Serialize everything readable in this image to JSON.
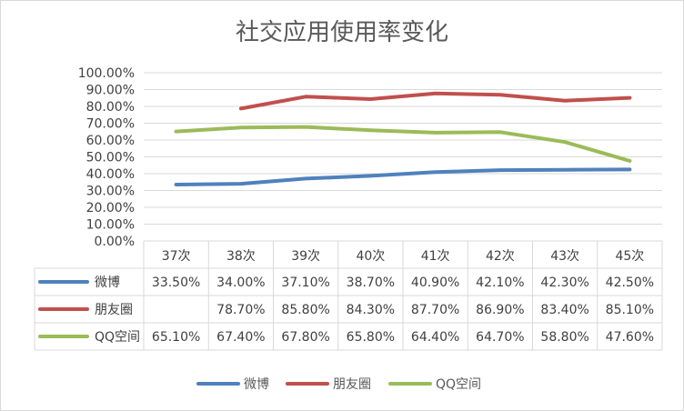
{
  "chart_data": {
    "type": "line",
    "title": "社交应用使用率变化",
    "categories": [
      "37次",
      "38次",
      "39次",
      "40次",
      "41次",
      "42次",
      "43次",
      "45次"
    ],
    "ylim": [
      0,
      100
    ],
    "yticks": [
      "0.00%",
      "10.00%",
      "20.00%",
      "30.00%",
      "40.00%",
      "50.00%",
      "60.00%",
      "70.00%",
      "80.00%",
      "90.00%",
      "100.00%"
    ],
    "grid": true,
    "legend": "bottom",
    "data_table": true,
    "series": [
      {
        "name": "微博",
        "color": "#4f81bd",
        "values": [
          33.5,
          34.0,
          37.1,
          38.7,
          40.9,
          42.1,
          42.3,
          42.5
        ],
        "labels": [
          "33.50%",
          "34.00%",
          "37.10%",
          "38.70%",
          "40.90%",
          "42.10%",
          "42.30%",
          "42.50%"
        ]
      },
      {
        "name": "朋友圈",
        "color": "#c0504d",
        "values": [
          null,
          78.7,
          85.8,
          84.3,
          87.7,
          86.9,
          83.4,
          85.1
        ],
        "labels": [
          "",
          "78.70%",
          "85.80%",
          "84.30%",
          "87.70%",
          "86.90%",
          "83.40%",
          "85.10%"
        ]
      },
      {
        "name": "QQ空间",
        "color": "#9bbb59",
        "values": [
          65.1,
          67.4,
          67.8,
          65.8,
          64.4,
          64.7,
          58.8,
          47.6
        ],
        "labels": [
          "65.10%",
          "67.40%",
          "67.80%",
          "65.80%",
          "64.40%",
          "64.70%",
          "58.80%",
          "47.60%"
        ]
      }
    ]
  }
}
